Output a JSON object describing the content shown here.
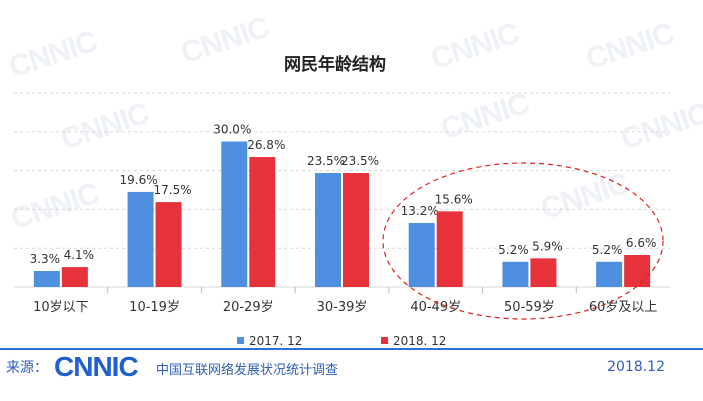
{
  "chart_data": {
    "type": "bar",
    "title": "网民年龄结构",
    "categories": [
      "10岁以下",
      "10-19岁",
      "20-29岁",
      "30-39岁",
      "40-49岁",
      "50-59岁",
      "60岁及以上"
    ],
    "series": [
      {
        "name": "2017. 12",
        "color": "#4f8fe0",
        "values": [
          3.3,
          19.6,
          30.0,
          23.5,
          13.2,
          5.2,
          5.2
        ],
        "labels": [
          "3.3%",
          "19.6%",
          "30.0%",
          "23.5%",
          "13.2%",
          "5.2%",
          "5.2%"
        ]
      },
      {
        "name": "2018. 12",
        "color": "#e8323b",
        "values": [
          4.1,
          17.5,
          26.8,
          23.5,
          15.6,
          5.9,
          6.6
        ],
        "labels": [
          "4.1%",
          "17.5%",
          "26.8%",
          "23.5%",
          "15.6%",
          "5.9%",
          "6.6%"
        ]
      }
    ],
    "ylim": [
      0,
      32
    ],
    "grid": true,
    "legend_position": "bottom-center",
    "annotation": "red dashed ellipse around 40-49岁, 50-59岁, 60岁及以上"
  },
  "watermark": "CNNIC",
  "footer": {
    "source_label": "来源：",
    "logo": "CNNIC",
    "org": "中国互联网络发展状况统计调查",
    "date": "2018.12"
  }
}
